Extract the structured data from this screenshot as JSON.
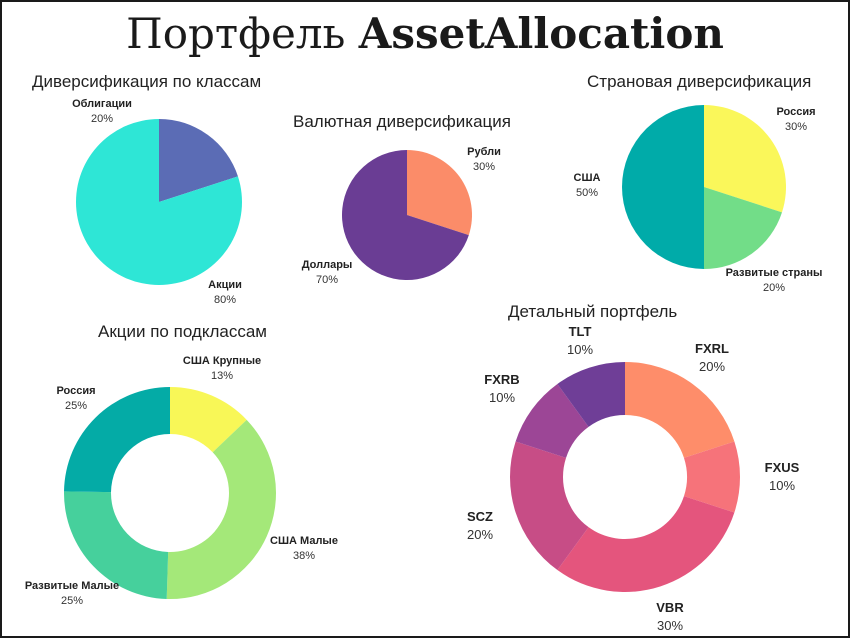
{
  "page": {
    "title_regular": "Портфель ",
    "title_bold": "AssetAllocation"
  },
  "chart_data": [
    {
      "id": "classes",
      "type": "pie",
      "title": "Диверсификация по классам",
      "slices": [
        {
          "label": "Облигации",
          "value": 20,
          "display": "20%",
          "color": "#5b6cb5"
        },
        {
          "label": "Акции",
          "value": 80,
          "display": "80%",
          "color": "#2ee6d6"
        }
      ]
    },
    {
      "id": "currency",
      "type": "pie",
      "title": "Валютная диверсификация",
      "slices": [
        {
          "label": "Рубли",
          "value": 30,
          "display": "30%",
          "color": "#fb8c69"
        },
        {
          "label": "Доллары",
          "value": 70,
          "display": "70%",
          "color": "#6a3d94"
        }
      ]
    },
    {
      "id": "country",
      "type": "pie",
      "title": "Страновая диверсификация",
      "slices": [
        {
          "label": "Россия",
          "value": 30,
          "display": "30%",
          "color": "#faf75a"
        },
        {
          "label": "Развитые страны",
          "value": 20,
          "display": "20%",
          "color": "#72dd88"
        },
        {
          "label": "США",
          "value": 50,
          "display": "50%",
          "color": "#00aba9"
        }
      ]
    },
    {
      "id": "subclasses",
      "type": "pie",
      "title": "Акции по подклассам",
      "donut": true,
      "slices": [
        {
          "label": "США Крупные",
          "value": 13,
          "display": "13%",
          "color": "#f8f757"
        },
        {
          "label": "США Малые",
          "value": 38,
          "display": "38%",
          "color": "#a4e879"
        },
        {
          "label": "Развитые Малые",
          "value": 25,
          "display": "25%",
          "color": "#46d09c"
        },
        {
          "label": "Россия",
          "value": 25,
          "display": "25%",
          "color": "#04aba6"
        }
      ]
    },
    {
      "id": "detailed",
      "type": "pie",
      "title": "Детальный портфель",
      "donut": true,
      "slices": [
        {
          "label": "FXRL",
          "value": 20,
          "display": "20%",
          "color": "#fe8d6a"
        },
        {
          "label": "FXUS",
          "value": 10,
          "display": "10%",
          "color": "#f6737a"
        },
        {
          "label": "VBR",
          "value": 30,
          "display": "30%",
          "color": "#e4557d"
        },
        {
          "label": "SCZ",
          "value": 20,
          "display": "20%",
          "color": "#c74d86"
        },
        {
          "label": "FXRB",
          "value": 10,
          "display": "10%",
          "color": "#9c4696"
        },
        {
          "label": "TLT",
          "value": 10,
          "display": "10%",
          "color": "#6f3e97"
        }
      ]
    }
  ]
}
